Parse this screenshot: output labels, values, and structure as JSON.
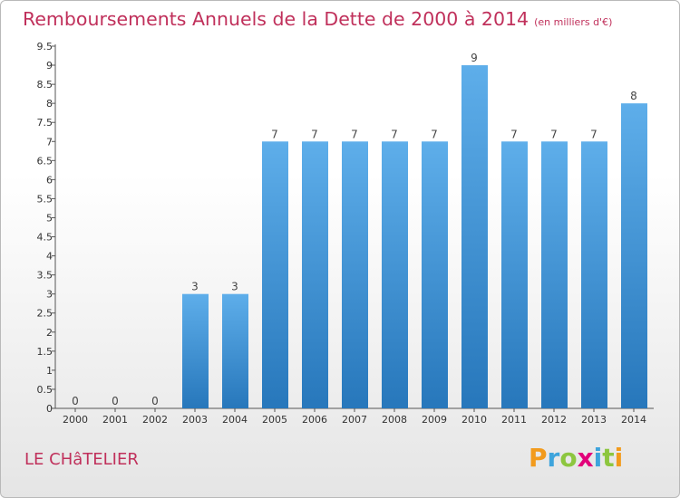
{
  "title": "Remboursements Annuels de la Dette de 2000 à 2014",
  "unit": "(en milliers d'€)",
  "commune": "LE CHâTELIER",
  "logo": {
    "text": "Proxiti",
    "colors": [
      "#f29b1d",
      "#3ea4dc",
      "#8dc63f",
      "#e2007a",
      "#3ea4dc",
      "#8dc63f",
      "#f29b1d"
    ]
  },
  "colors": {
    "bar_dark": "#2777bb",
    "bar_light": "#5eaeea",
    "title": "#c0305b"
  },
  "chart_data": {
    "type": "bar",
    "categories": [
      "2000",
      "2001",
      "2002",
      "2003",
      "2004",
      "2005",
      "2006",
      "2007",
      "2008",
      "2009",
      "2010",
      "2011",
      "2012",
      "2013",
      "2014"
    ],
    "values": [
      0,
      0,
      0,
      3,
      3,
      7,
      7,
      7,
      7,
      7,
      9,
      7,
      7,
      7,
      8
    ],
    "value_labels": [
      "0",
      "0",
      "0",
      "3",
      "3",
      "7",
      "7",
      "7",
      "7",
      "7",
      "9",
      "7",
      "7",
      "7",
      "8"
    ],
    "y_ticks": [
      "0",
      "0.5",
      "1",
      "1.5",
      "2",
      "2.5",
      "3",
      "3.5",
      "4",
      "4.5",
      "5",
      "5.5",
      "6",
      "6.5",
      "7",
      "7.5",
      "8",
      "8.5",
      "9",
      "9.5"
    ],
    "ylim": [
      0,
      9.5
    ],
    "grid": false
  }
}
